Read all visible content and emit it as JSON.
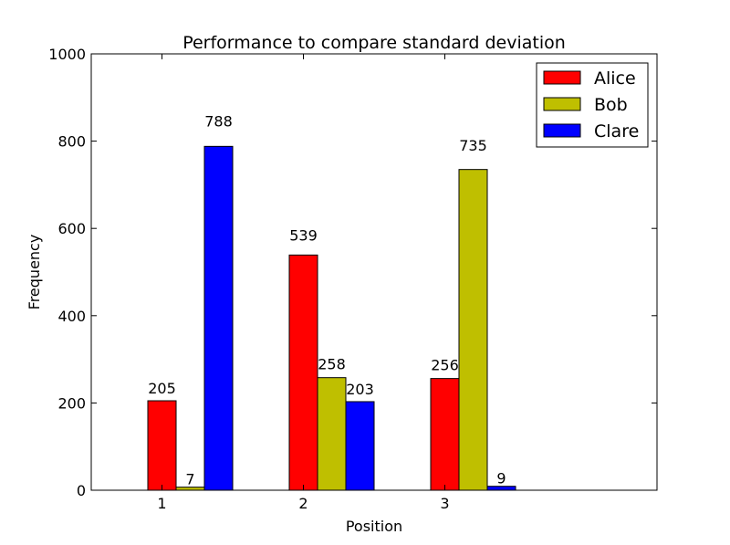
{
  "chart_data": {
    "type": "bar",
    "title": "Performance to compare standard deviation",
    "xlabel": "Position",
    "ylabel": "Frequency",
    "categories": [
      "1",
      "2",
      "3"
    ],
    "series": [
      {
        "name": "Alice",
        "color": "#ff0000",
        "values": [
          205,
          539,
          256
        ]
      },
      {
        "name": "Bob",
        "color": "#bfbf00",
        "values": [
          7,
          258,
          735
        ]
      },
      {
        "name": "Clare",
        "color": "#0000ff",
        "values": [
          788,
          203,
          9
        ]
      }
    ],
    "ylim": [
      0,
      1000
    ],
    "yticks": [
      0,
      200,
      400,
      600,
      800,
      1000
    ],
    "xlim": [
      0.5,
      4.5
    ],
    "grid": false,
    "legend_position": "top-right"
  }
}
